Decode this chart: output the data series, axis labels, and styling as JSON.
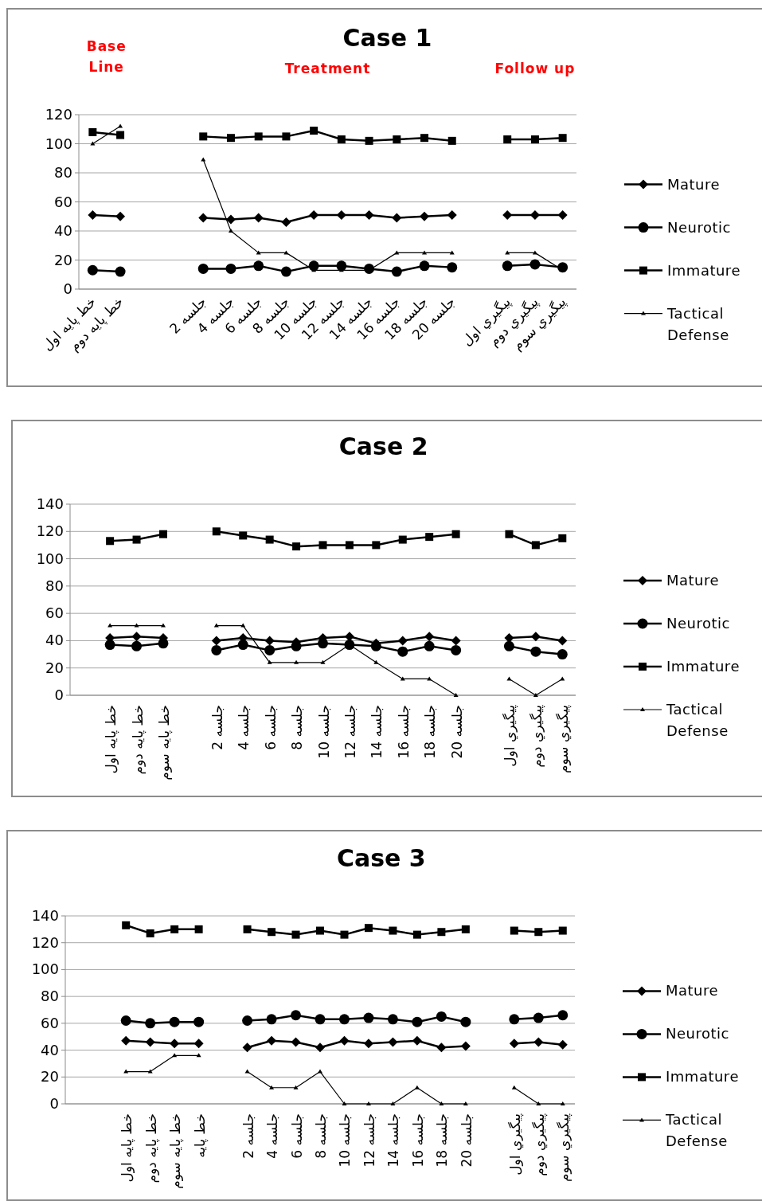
{
  "chart_data": [
    {
      "type": "line",
      "title": "Case 1",
      "annotations": [
        "Base Line",
        "Treatment",
        "Follow up"
      ],
      "categories": [
        "خط پایه اول",
        "خط پایه دوم",
        null,
        null,
        "جلسه 2",
        "جلسه 4",
        "جلسه 6",
        "جلسه 8",
        "جلسه 10",
        "جلسه 12",
        "جلسه 14",
        "جلسه 16",
        "جلسه 18",
        "جلسه 20",
        null,
        "پیگیري اول",
        "پیگیري دوم",
        "پیگیري سوم"
      ],
      "ylim": [
        0,
        120
      ],
      "yticks": [
        0,
        20,
        40,
        60,
        80,
        100,
        120
      ],
      "grid": "y",
      "legend": "right",
      "series": [
        {
          "name": "Mature",
          "color": "#000000",
          "marker": "diamond",
          "values": [
            51,
            50,
            null,
            null,
            49,
            48,
            49,
            46,
            51,
            51,
            51,
            49,
            50,
            51,
            null,
            51,
            51,
            51
          ]
        },
        {
          "name": "Neurotic",
          "color": "#000000",
          "marker": "circle",
          "values": [
            13,
            12,
            null,
            null,
            14,
            14,
            16,
            12,
            16,
            16,
            14,
            12,
            16,
            15,
            null,
            16,
            17,
            15
          ]
        },
        {
          "name": "Immature",
          "color": "#000000",
          "marker": "square",
          "values": [
            108,
            106,
            null,
            null,
            105,
            104,
            105,
            105,
            109,
            103,
            102,
            103,
            104,
            102,
            null,
            103,
            103,
            104
          ]
        },
        {
          "name": "Tactical Defense",
          "color": "#000000",
          "marker": "triangle",
          "values": [
            100,
            112,
            null,
            null,
            89,
            40,
            25,
            25,
            13,
            13,
            13,
            25,
            25,
            25,
            null,
            25,
            25,
            13
          ]
        }
      ]
    },
    {
      "type": "line",
      "title": "Case 2",
      "categories": [
        null,
        "خط پایه اول",
        "خط پایه دوم",
        "خط پایه سوم",
        null,
        "جلسه 2",
        "جلسه 4",
        "جلسه 6",
        "جلسه 8",
        "جلسه 10",
        "جلسه 12",
        "جلسه 14",
        "جلسه 16",
        "جلسه 18",
        "جلسه 20",
        null,
        "پیگیري اول",
        "پیگیري دوم",
        "پیگیري سوم"
      ],
      "ylim": [
        0,
        140
      ],
      "yticks": [
        0,
        20,
        40,
        60,
        80,
        100,
        120,
        140
      ],
      "grid": "y",
      "legend": "right",
      "series": [
        {
          "name": "Mature",
          "color": "#000000",
          "marker": "diamond",
          "values": [
            null,
            42,
            43,
            42,
            null,
            40,
            42,
            40,
            39,
            42,
            43,
            38,
            40,
            43,
            40,
            null,
            42,
            43,
            40
          ]
        },
        {
          "name": "Neurotic",
          "color": "#000000",
          "marker": "circle",
          "values": [
            null,
            37,
            36,
            38,
            null,
            33,
            37,
            33,
            36,
            38,
            37,
            36,
            32,
            36,
            33,
            null,
            36,
            32,
            30
          ]
        },
        {
          "name": "Immature",
          "color": "#000000",
          "marker": "square",
          "values": [
            null,
            113,
            114,
            118,
            null,
            120,
            117,
            114,
            109,
            110,
            110,
            110,
            114,
            116,
            118,
            null,
            118,
            110,
            115
          ]
        },
        {
          "name": "Tactical Defense",
          "color": "#000000",
          "marker": "triangle",
          "values": [
            null,
            51,
            51,
            51,
            null,
            51,
            51,
            24,
            24,
            24,
            37,
            24,
            12,
            12,
            0,
            null,
            12,
            0,
            12
          ]
        }
      ]
    },
    {
      "type": "line",
      "title": "Case 3",
      "categories": [
        null,
        null,
        "خط پایه اول",
        "خط پایه دوم",
        "خط پایه سوم",
        "خط پایه",
        null,
        "جلسه 2",
        "جلسه 4",
        "جلسه 6",
        "جلسه 8",
        "جلسه 10",
        "جلسه 12",
        "جلسه 14",
        "جلسه 16",
        "جلسه 18",
        "جلسه 20",
        null,
        "پیگیري اول",
        "پیگیري دوم",
        "پیگیري سوم"
      ],
      "ylim": [
        0,
        140
      ],
      "yticks": [
        0,
        20,
        40,
        60,
        80,
        100,
        120,
        140
      ],
      "grid": "y",
      "legend": "right",
      "series": [
        {
          "name": "Mature",
          "color": "#000000",
          "marker": "diamond",
          "values": [
            null,
            null,
            47,
            46,
            45,
            45,
            null,
            42,
            47,
            46,
            42,
            47,
            45,
            46,
            47,
            42,
            43,
            null,
            45,
            46,
            44
          ]
        },
        {
          "name": "Neurotic",
          "color": "#000000",
          "marker": "circle",
          "values": [
            null,
            null,
            62,
            60,
            61,
            61,
            null,
            62,
            63,
            66,
            63,
            63,
            64,
            63,
            61,
            65,
            61,
            null,
            63,
            64,
            66
          ]
        },
        {
          "name": "Immature",
          "color": "#000000",
          "marker": "square",
          "values": [
            null,
            null,
            133,
            127,
            130,
            130,
            null,
            130,
            128,
            126,
            129,
            126,
            131,
            129,
            126,
            128,
            130,
            null,
            129,
            128,
            129
          ]
        },
        {
          "name": "Tactical Defense",
          "color": "#000000",
          "marker": "triangle",
          "values": [
            null,
            null,
            24,
            24,
            36,
            36,
            null,
            24,
            12,
            12,
            24,
            0,
            0,
            0,
            12,
            0,
            0,
            null,
            12,
            0,
            0
          ]
        }
      ]
    }
  ]
}
